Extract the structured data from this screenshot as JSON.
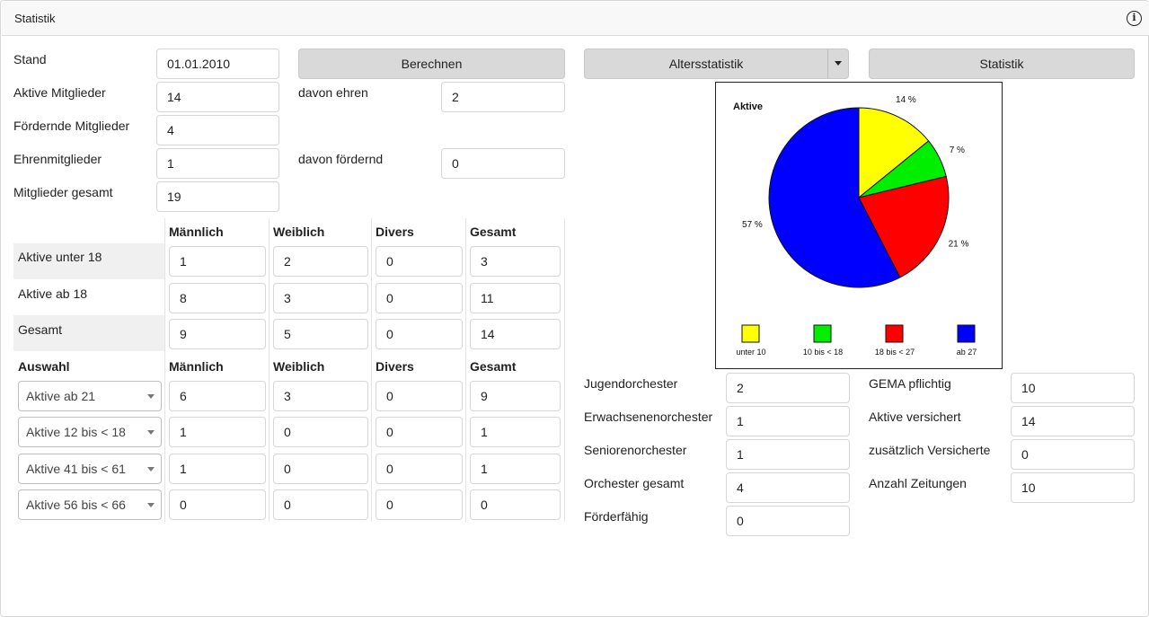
{
  "window": {
    "title": "Statistik"
  },
  "stand": {
    "label": "Stand",
    "value": "01.01.2010"
  },
  "buttons": {
    "calculate": "Berechnen",
    "age_stats": "Altersstatistik",
    "stats": "Statistik"
  },
  "members": {
    "active_label": "Aktive Mitglieder",
    "active": "14",
    "supporting_label": "Fördernde Mitglieder",
    "supporting": "4",
    "honorary_label": "Ehrenmitglieder",
    "honorary": "1",
    "total_label": "Mitglieder gesamt",
    "total": "19",
    "of_which_honorary_label": "davon ehren",
    "of_which_honorary": "2",
    "of_which_supporting_label": "davon fördernd",
    "of_which_supporting": "0"
  },
  "table": {
    "headers": [
      "Männlich",
      "Weiblich",
      "Divers",
      "Gesamt"
    ],
    "rows": [
      {
        "label": "Aktive unter 18",
        "values": [
          "1",
          "2",
          "0",
          "3"
        ]
      },
      {
        "label": "Aktive ab 18",
        "values": [
          "8",
          "3",
          "0",
          "11"
        ]
      },
      {
        "label": "Gesamt",
        "values": [
          "9",
          "5",
          "0",
          "14"
        ]
      }
    ]
  },
  "selection": {
    "header": "Auswahl",
    "headers": [
      "Männlich",
      "Weiblich",
      "Divers",
      "Gesamt"
    ],
    "rows": [
      {
        "option": "Aktive ab 21",
        "values": [
          "6",
          "3",
          "0",
          "9"
        ]
      },
      {
        "option": "Aktive 12 bis < 18",
        "values": [
          "1",
          "0",
          "0",
          "1"
        ]
      },
      {
        "option": "Aktive 41 bis < 61",
        "values": [
          "1",
          "0",
          "0",
          "1"
        ]
      },
      {
        "option": "Aktive 56 bis < 66",
        "values": [
          "0",
          "0",
          "0",
          "0"
        ]
      }
    ]
  },
  "orchestra": {
    "youth_label": "Jugendorchester",
    "youth": "2",
    "adult_label": "Erwachsenenorchester",
    "adult": "1",
    "senior_label": "Seniorenorchester",
    "senior": "1",
    "total_label": "Orchester gesamt",
    "total": "4",
    "eligible_label": "Förderfähig",
    "eligible": "0"
  },
  "other": {
    "gema_label": "GEMA pflichtig",
    "gema": "10",
    "insured_label": "Aktive versichert",
    "insured": "14",
    "extra_insured_label": "zusätzlich Versicherte",
    "extra_insured": "0",
    "newspapers_label": "Anzahl Zeitungen",
    "newspapers": "10"
  },
  "chart_data": {
    "type": "pie",
    "title": "Aktive",
    "categories": [
      "unter 10",
      "10 bis < 18",
      "18 bis < 27",
      "ab 27"
    ],
    "values": [
      14,
      7,
      21,
      57
    ],
    "value_labels": [
      "14 %",
      "7 %",
      "21 %",
      "57 %"
    ],
    "colors": [
      "#ffff00",
      "#00ee00",
      "#ff0000",
      "#0000ff"
    ],
    "legend": "bottom"
  }
}
